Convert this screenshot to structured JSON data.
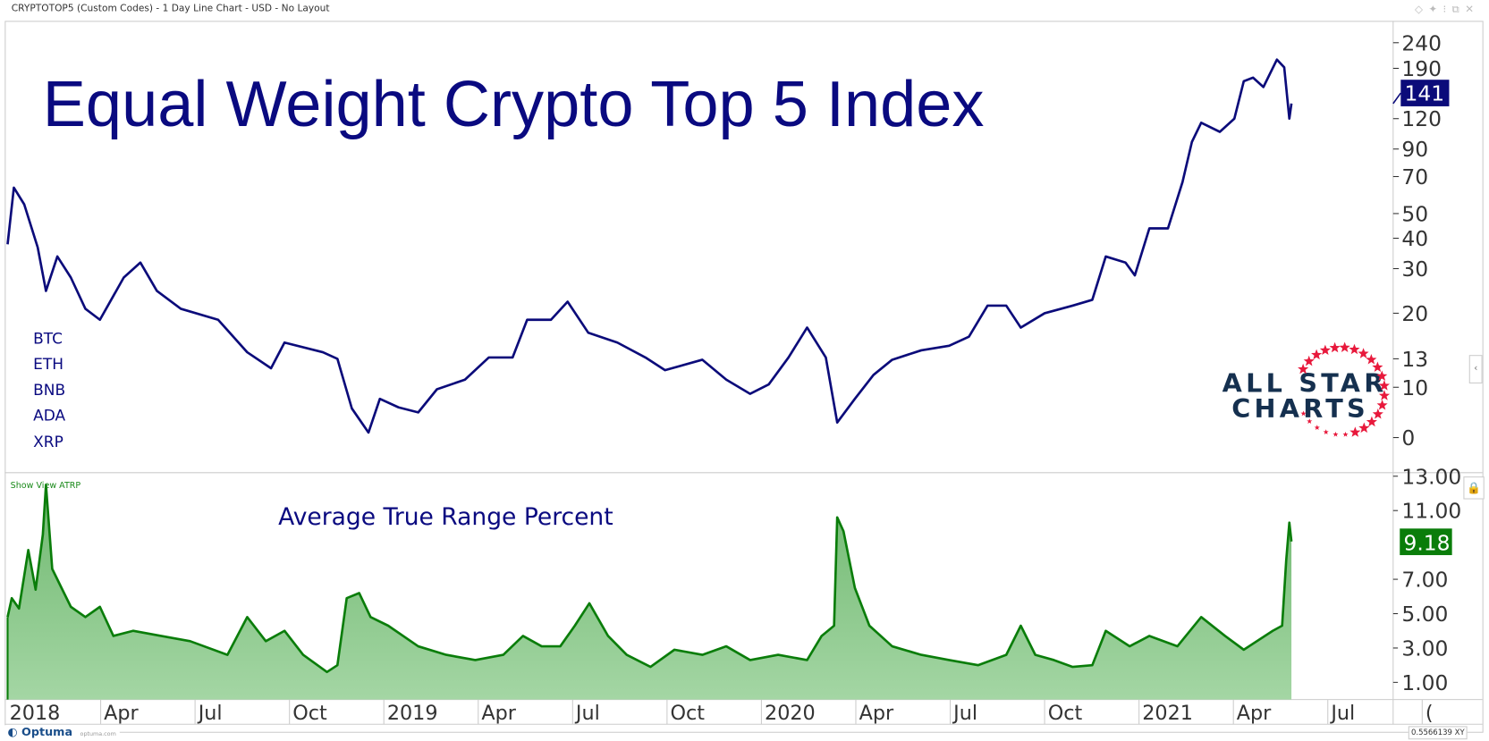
{
  "window": {
    "title": "CRYPTOTOP5 (Custom Codes) - 1 Day Line Chart - USD - No Layout",
    "icons": [
      "diamond-icon",
      "pin-icon",
      "more-icon",
      "restore-icon",
      "close-icon"
    ]
  },
  "legend_symbols": [
    "BTC",
    "ETH",
    "BNB",
    "ADA",
    "XRP"
  ],
  "logo": {
    "line1": "ALL STAR",
    "line2": "CHARTS",
    "star_color": "#e8193c",
    "text_color": "#15304f"
  },
  "footer": {
    "brand": "Optuma",
    "site": "optuma.com",
    "coord_readout": "0.5566139",
    "xy_label": "XY"
  },
  "show_view_label": "Show View ATRP",
  "chart_data": [
    {
      "type": "line",
      "title": "Equal Weight Crypto Top 5 Index",
      "color": "#0b0b7a",
      "scale": "log",
      "y_tick_labels": [
        "240",
        "190",
        "120",
        "90",
        "70",
        "50",
        "40",
        "30",
        "20",
        "13",
        "10",
        "0"
      ],
      "last_value_label": "141",
      "x": [
        "2018-01-01",
        "2018-01-07",
        "2018-01-17",
        "2018-01-30",
        "2018-02-07",
        "2018-02-18",
        "2018-03-03",
        "2018-03-17",
        "2018-03-31",
        "2018-04-23",
        "2018-05-09",
        "2018-05-25",
        "2018-06-17",
        "2018-07-23",
        "2018-08-20",
        "2018-09-12",
        "2018-09-25",
        "2018-11-01",
        "2018-11-15",
        "2018-11-29",
        "2018-12-15",
        "2018-12-26",
        "2019-01-13",
        "2019-02-01",
        "2019-02-19",
        "2019-03-18",
        "2019-04-10",
        "2019-05-03",
        "2019-05-17",
        "2019-06-09",
        "2019-06-25",
        "2019-07-15",
        "2019-08-12",
        "2019-09-08",
        "2019-09-27",
        "2019-11-02",
        "2019-11-25",
        "2019-12-18",
        "2020-01-05",
        "2020-01-24",
        "2020-02-11",
        "2020-02-29",
        "2020-03-11",
        "2020-03-28",
        "2020-04-15",
        "2020-05-03",
        "2020-05-31",
        "2020-06-27",
        "2020-07-16",
        "2020-08-03",
        "2020-08-21",
        "2020-09-04",
        "2020-09-27",
        "2020-10-24",
        "2020-11-12",
        "2020-11-25",
        "2020-12-14",
        "2020-12-23",
        "2021-01-06",
        "2021-01-24",
        "2021-02-07",
        "2021-02-16",
        "2021-02-25",
        "2021-03-15",
        "2021-03-29",
        "2021-04-07",
        "2021-04-16",
        "2021-04-26",
        "2021-05-09",
        "2021-05-16",
        "2021-05-21",
        "2021-05-23"
      ],
      "y": [
        38,
        64,
        55,
        37,
        25,
        34,
        28,
        21,
        19,
        28,
        32,
        25,
        21,
        19,
        14,
        12,
        15.5,
        14,
        13,
        5.8,
        1,
        7.7,
        6,
        5,
        9.6,
        10.8,
        13.2,
        13.2,
        19,
        19,
        22.6,
        17,
        15.5,
        13.2,
        11.8,
        12.9,
        10.8,
        8.7,
        10.3,
        13.2,
        17.8,
        13.2,
        3,
        7.7,
        11.3,
        12.9,
        14.3,
        15,
        16.4,
        21.7,
        21.7,
        17.8,
        20,
        21.7,
        23,
        34,
        32,
        28.5,
        44,
        44,
        67,
        97,
        116,
        107,
        120,
        172,
        177,
        164,
        207,
        192,
        120,
        141
      ]
    },
    {
      "type": "area",
      "title": "Average True Range Percent",
      "color": "#0a7d0a",
      "fill": "#8cc98c",
      "y_tick_labels": [
        "13.00",
        "11.00",
        "7.00",
        "5.00",
        "3.00",
        "1.00"
      ],
      "ylim": [
        0,
        13
      ],
      "last_value_label": "9.18",
      "x": [
        "2018-01-01",
        "2018-01-05",
        "2018-01-12",
        "2018-01-21",
        "2018-01-28",
        "2018-02-04",
        "2018-02-07",
        "2018-02-13",
        "2018-02-22",
        "2018-03-03",
        "2018-03-17",
        "2018-03-31",
        "2018-04-13",
        "2018-05-02",
        "2018-05-29",
        "2018-06-26",
        "2018-08-01",
        "2018-08-20",
        "2018-09-07",
        "2018-09-25",
        "2018-10-13",
        "2018-11-05",
        "2018-11-15",
        "2018-11-24",
        "2018-12-06",
        "2018-12-17",
        "2019-01-03",
        "2019-02-01",
        "2019-02-28",
        "2019-03-28",
        "2019-04-24",
        "2019-05-13",
        "2019-05-31",
        "2019-06-18",
        "2019-07-02",
        "2019-07-16",
        "2019-08-03",
        "2019-08-21",
        "2019-09-13",
        "2019-10-06",
        "2019-11-02",
        "2019-11-25",
        "2019-12-18",
        "2020-01-14",
        "2020-02-11",
        "2020-02-25",
        "2020-03-08",
        "2020-03-11",
        "2020-03-17",
        "2020-03-28",
        "2020-04-11",
        "2020-05-03",
        "2020-05-31",
        "2020-06-27",
        "2020-07-25",
        "2020-08-21",
        "2020-09-04",
        "2020-09-18",
        "2020-10-06",
        "2020-10-24",
        "2020-11-12",
        "2020-11-25",
        "2020-12-18",
        "2021-01-06",
        "2021-02-02",
        "2021-02-25",
        "2021-03-20",
        "2021-04-07",
        "2021-05-05",
        "2021-05-14",
        "2021-05-18",
        "2021-05-21",
        "2021-05-23"
      ],
      "y": [
        4.8,
        5.9,
        5.3,
        8.7,
        6.4,
        9.6,
        12.5,
        7.6,
        6.5,
        5.4,
        4.8,
        5.4,
        3.7,
        4,
        3.7,
        3.4,
        2.6,
        4.8,
        3.4,
        4,
        2.6,
        1.6,
        2,
        5.9,
        6.2,
        4.8,
        4.3,
        3.1,
        2.6,
        2.3,
        2.6,
        3.7,
        3.1,
        3.1,
        4.3,
        5.6,
        3.7,
        2.6,
        1.9,
        2.9,
        2.6,
        3.1,
        2.3,
        2.6,
        2.3,
        3.7,
        4.3,
        10.6,
        9.8,
        6.5,
        4.3,
        3.1,
        2.6,
        2.3,
        2,
        2.6,
        4.3,
        2.6,
        2.3,
        1.9,
        2,
        4,
        3.1,
        3.7,
        3.1,
        4.8,
        3.7,
        2.9,
        4,
        4.3,
        8.1,
        10.3,
        9.2
      ]
    }
  ],
  "x_axis_labels": [
    "2018",
    "Apr",
    "Jul",
    "Oct",
    "2019",
    "Apr",
    "Jul",
    "Oct",
    "2020",
    "Apr",
    "Jul",
    "Oct",
    "2021",
    "Apr",
    "Jul",
    "("
  ]
}
